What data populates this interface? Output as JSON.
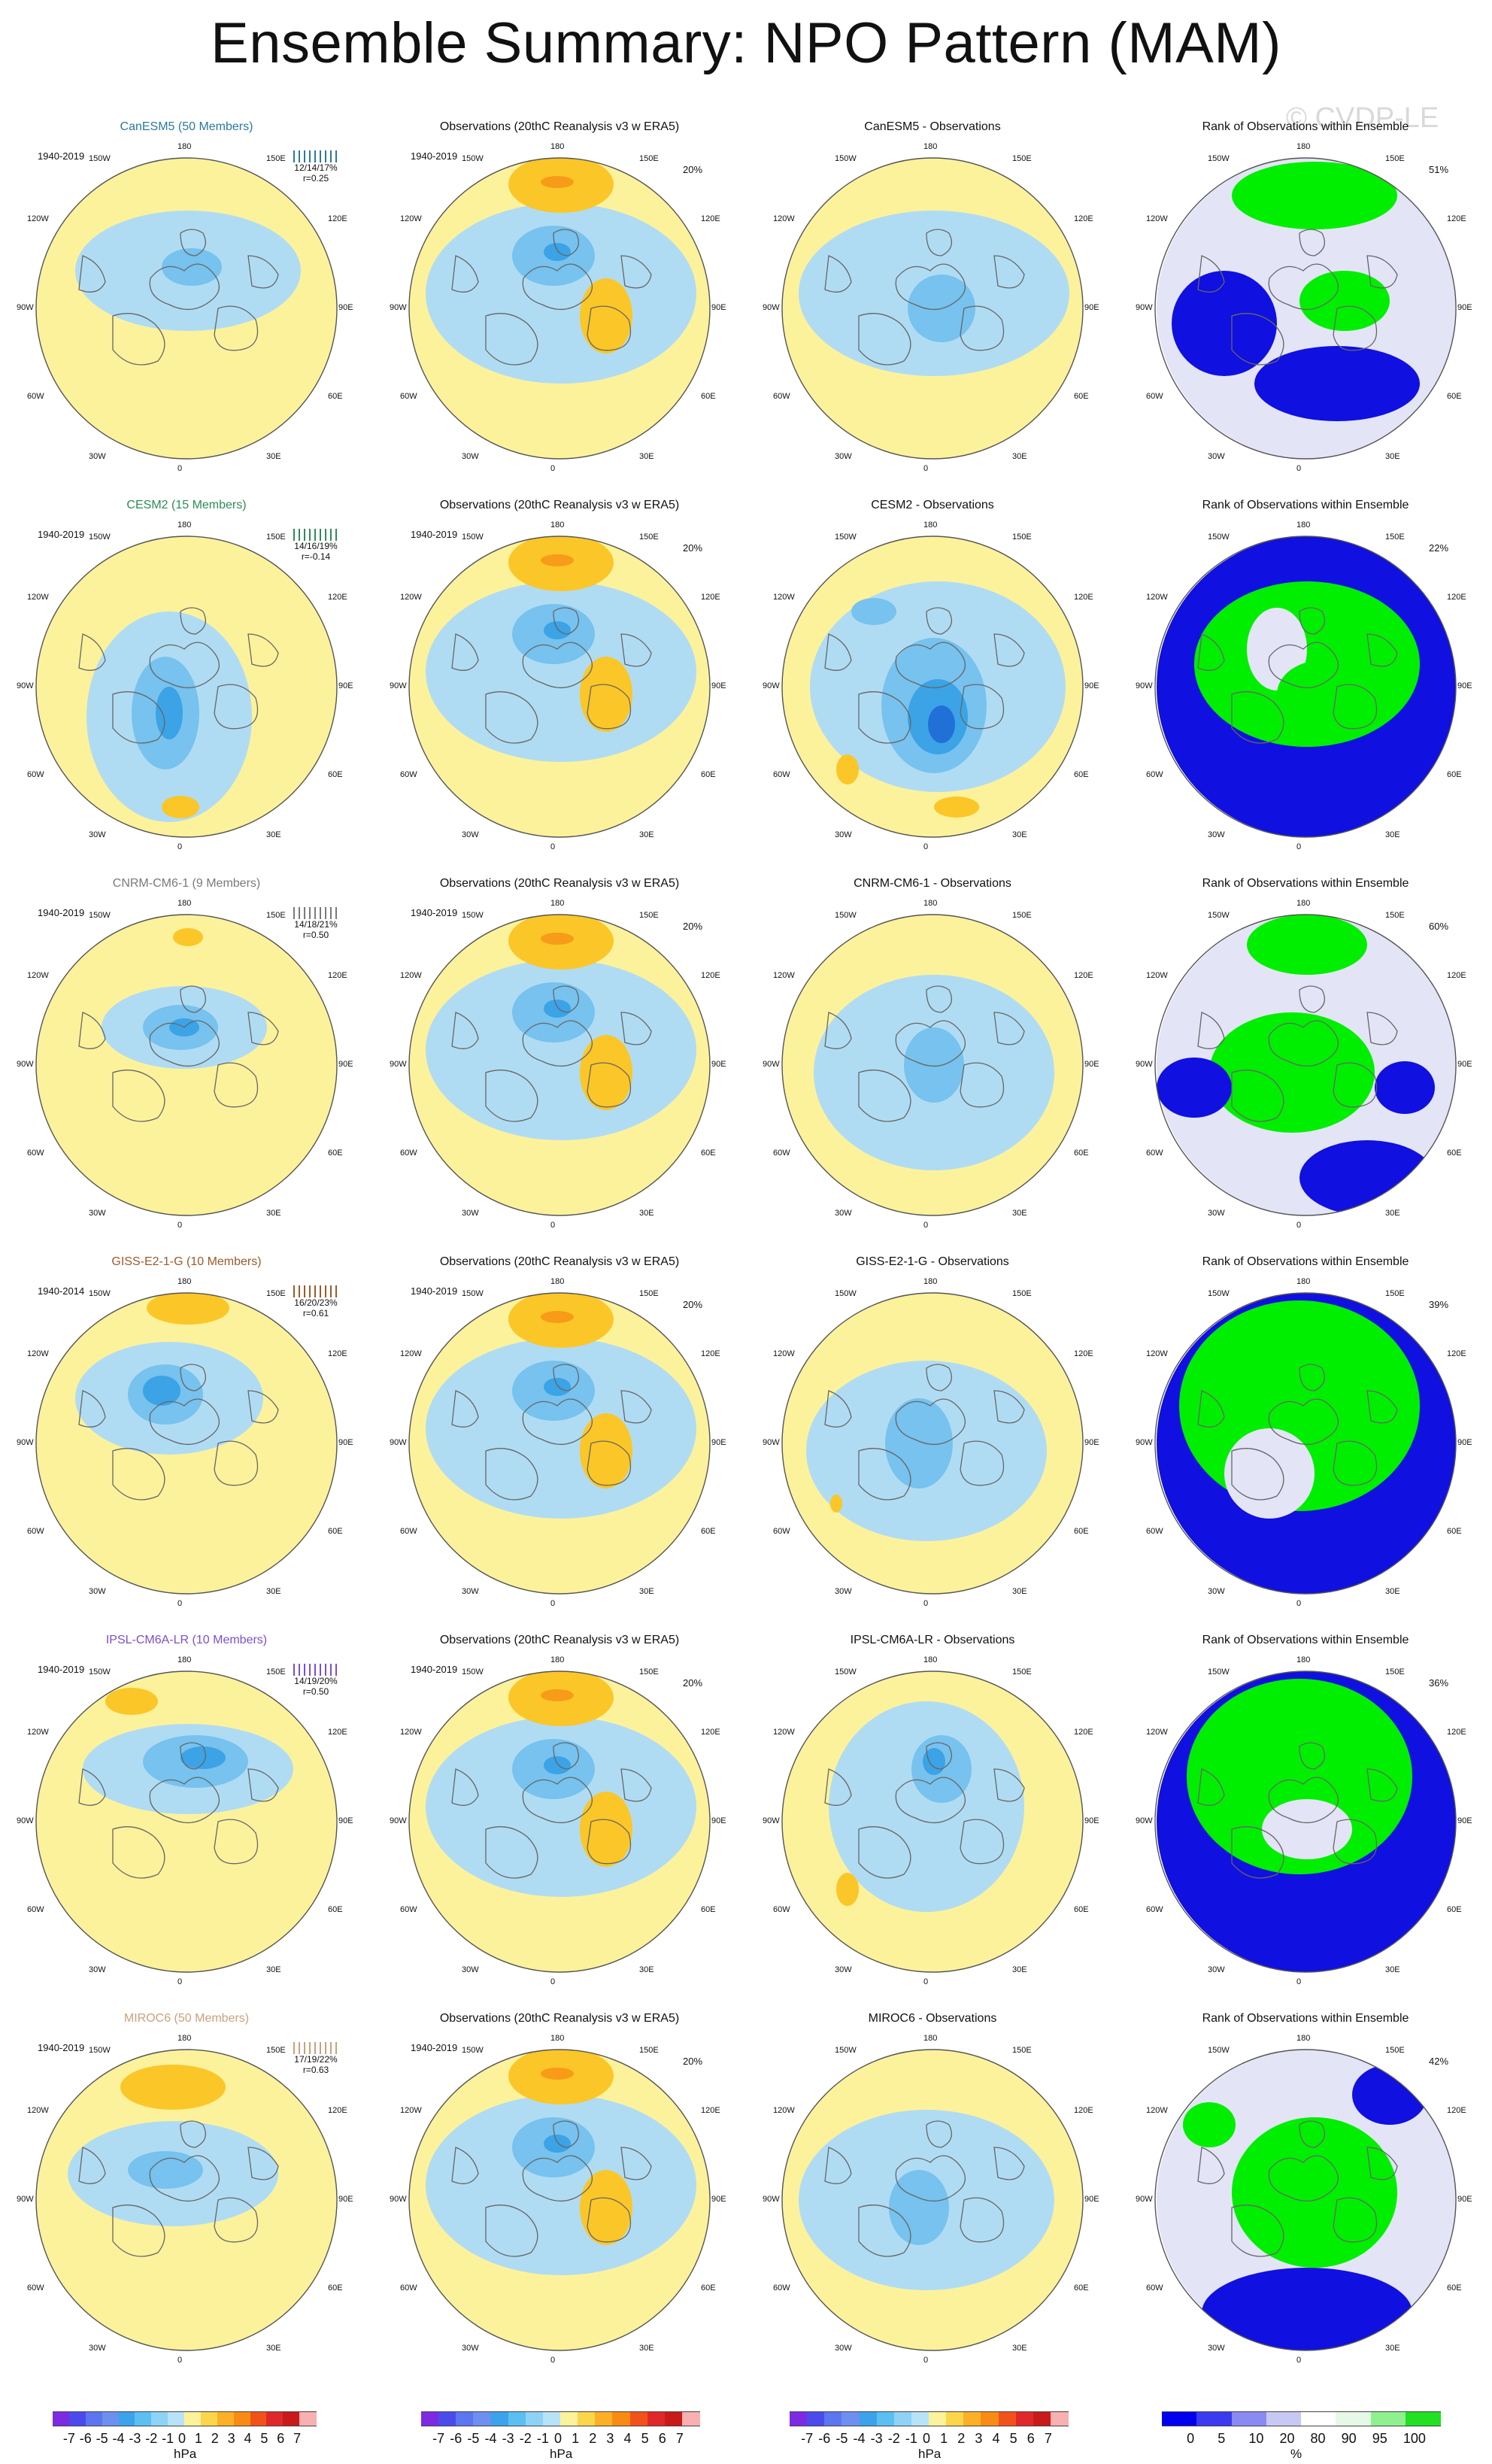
{
  "title": "Ensemble Summary: NPO Pattern (MAM)",
  "watermark": "© CVDP-LE",
  "longitude_labels": [
    "180",
    "150E",
    "120E",
    "90E",
    "60E",
    "30E",
    "0",
    "30W",
    "60W",
    "90W",
    "120W",
    "150W"
  ],
  "colors": {
    "pos1": "#fdf29c",
    "pos2": "#fbc627",
    "pos3": "#f79b18",
    "neg1": "#b0dcf3",
    "neg2": "#77c2ee",
    "neg3": "#3ba3e6",
    "neg4": "#2070d8",
    "rank_high": "#00ee00",
    "rank_mid": "#e4e4f7",
    "rank_low": "#1010e0"
  },
  "rows": [
    {
      "model": {
        "title": "CanESM5 (50 Members)",
        "title_color": "#2a7a9c",
        "period": "1940-2019",
        "stats": "12/14/17%",
        "r": "r=0.25"
      },
      "obs": {
        "title": "Observations (20thC Reanalysis v3 w ERA5)",
        "period": "1940-2019",
        "pct": "20%"
      },
      "diff": {
        "title": "CanESM5 - Observations"
      },
      "rank": {
        "title": "Rank of Observations within Ensemble",
        "pct": "51%"
      }
    },
    {
      "model": {
        "title": "CESM2 (15 Members)",
        "title_color": "#2e8b57",
        "period": "1940-2019",
        "stats": "14/16/19%",
        "r": "r=-0.14"
      },
      "obs": {
        "title": "Observations (20thC Reanalysis v3 w ERA5)",
        "period": "1940-2019",
        "pct": "20%"
      },
      "diff": {
        "title": "CESM2 - Observations"
      },
      "rank": {
        "title": "Rank of Observations within Ensemble",
        "pct": "22%"
      }
    },
    {
      "model": {
        "title": "CNRM-CM6-1 (9 Members)",
        "title_color": "#7a7a7a",
        "period": "1940-2019",
        "stats": "14/18/21%",
        "r": "r=0.50"
      },
      "obs": {
        "title": "Observations (20thC Reanalysis v3 w ERA5)",
        "period": "1940-2019",
        "pct": "20%"
      },
      "diff": {
        "title": "CNRM-CM6-1 - Observations"
      },
      "rank": {
        "title": "Rank of Observations within Ensemble",
        "pct": "60%"
      }
    },
    {
      "model": {
        "title": "GISS-E2-1-G (10 Members)",
        "title_color": "#9c5a2a",
        "period": "1940-2014",
        "stats": "16/20/23%",
        "r": "r=0.61"
      },
      "obs": {
        "title": "Observations (20thC Reanalysis v3 w ERA5)",
        "period": "1940-2019",
        "pct": "20%"
      },
      "diff": {
        "title": "GISS-E2-1-G - Observations"
      },
      "rank": {
        "title": "Rank of Observations within Ensemble",
        "pct": "39%"
      }
    },
    {
      "model": {
        "title": "IPSL-CM6A-LR (10 Members)",
        "title_color": "#7b4fd1",
        "period": "1940-2019",
        "stats": "14/19/20%",
        "r": "r=0.50"
      },
      "obs": {
        "title": "Observations (20thC Reanalysis v3 w ERA5)",
        "period": "1940-2019",
        "pct": "20%"
      },
      "diff": {
        "title": "IPSL-CM6A-LR - Observations"
      },
      "rank": {
        "title": "Rank of Observations within Ensemble",
        "pct": "36%"
      }
    },
    {
      "model": {
        "title": "MIROC6 (50 Members)",
        "title_color": "#c9a27a",
        "period": "1940-2019",
        "stats": "17/19/22%",
        "r": "r=0.63"
      },
      "obs": {
        "title": "Observations (20thC Reanalysis v3 w ERA5)",
        "period": "1940-2019",
        "pct": "20%"
      },
      "diff": {
        "title": "MIROC6 - Observations"
      },
      "rank": {
        "title": "Rank of Observations within Ensemble",
        "pct": "42%"
      }
    }
  ],
  "colorbars": [
    {
      "ticks": [
        "-7",
        "-6",
        "-5",
        "-4",
        "-3",
        "-2",
        "-1",
        "0",
        "1",
        "2",
        "3",
        "4",
        "5",
        "6",
        "7"
      ],
      "unit": "hPa",
      "colors": [
        "#7d2be2",
        "#4b4bed",
        "#5c75f0",
        "#6d8ff0",
        "#3aa3ea",
        "#5bbff2",
        "#8ed3f5",
        "#b8e2f7",
        "#fdf29c",
        "#fbd64a",
        "#fbb025",
        "#f78b14",
        "#f2521a",
        "#e0282a",
        "#c81a1a",
        "#f8b0b0"
      ]
    },
    {
      "ticks": [
        "-7",
        "-6",
        "-5",
        "-4",
        "-3",
        "-2",
        "-1",
        "0",
        "1",
        "2",
        "3",
        "4",
        "5",
        "6",
        "7"
      ],
      "unit": "hPa",
      "colors": [
        "#7d2be2",
        "#4b4bed",
        "#5c75f0",
        "#6d8ff0",
        "#3aa3ea",
        "#5bbff2",
        "#8ed3f5",
        "#b8e2f7",
        "#fdf29c",
        "#fbd64a",
        "#fbb025",
        "#f78b14",
        "#f2521a",
        "#e0282a",
        "#c81a1a",
        "#f8b0b0"
      ]
    },
    {
      "ticks": [
        "-7",
        "-6",
        "-5",
        "-4",
        "-3",
        "-2",
        "-1",
        "0",
        "1",
        "2",
        "3",
        "4",
        "5",
        "6",
        "7"
      ],
      "unit": "hPa",
      "colors": [
        "#7d2be2",
        "#4b4bed",
        "#5c75f0",
        "#6d8ff0",
        "#3aa3ea",
        "#5bbff2",
        "#8ed3f5",
        "#b8e2f7",
        "#fdf29c",
        "#fbd64a",
        "#fbb025",
        "#f78b14",
        "#f2521a",
        "#e0282a",
        "#c81a1a",
        "#f8b0b0"
      ]
    },
    {
      "ticks": [
        "0",
        "5",
        "10",
        "20",
        "80",
        "90",
        "95",
        "100"
      ],
      "unit": "%",
      "colors": [
        "#0000ee",
        "#3a3af0",
        "#8a8af3",
        "#c8c8f5",
        "#ffffff",
        "#e6f8e6",
        "#8ff08f",
        "#22e022"
      ]
    }
  ]
}
